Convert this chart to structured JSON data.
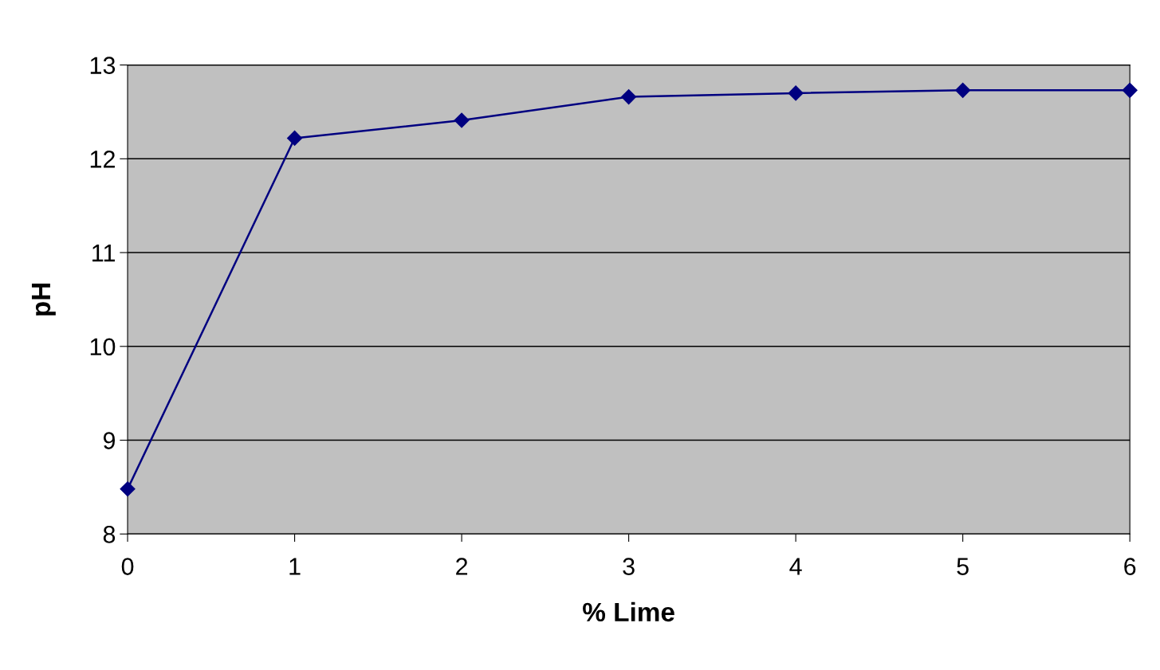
{
  "chart_data": {
    "type": "line",
    "xlabel": "% Lime",
    "ylabel": "pH",
    "x": [
      0,
      1,
      2,
      3,
      4,
      5,
      6
    ],
    "series": [
      {
        "color": "#000080",
        "values": [
          8.48,
          12.22,
          12.41,
          12.66,
          12.7,
          12.73,
          12.73
        ]
      }
    ],
    "xlim": [
      0,
      6
    ],
    "xticks": [
      0,
      1,
      2,
      3,
      4,
      5,
      6
    ],
    "ylim": [
      8,
      13
    ],
    "yticks": [
      8,
      9,
      10,
      11,
      12,
      13
    ],
    "grid": "y",
    "marker": "diamond",
    "line_style": "solid",
    "legend": false
  }
}
